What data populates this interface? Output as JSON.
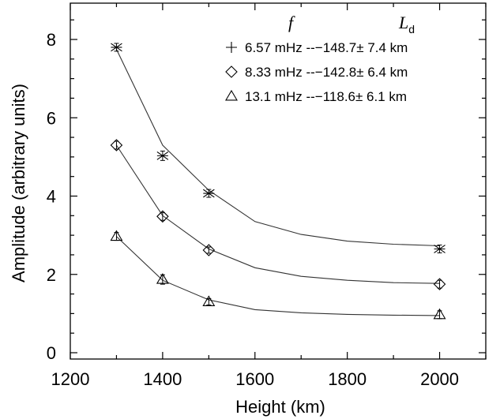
{
  "chart_data": {
    "type": "line",
    "title": "",
    "xlabel": "Height (km)",
    "ylabel": "Amplitude (arbitrary units)",
    "xlim": [
      1200,
      2100
    ],
    "ylim": [
      0,
      9
    ],
    "xticks": [
      1200,
      1400,
      1600,
      1800,
      2000
    ],
    "yticks": [
      0,
      2,
      4,
      6,
      8
    ],
    "legend": {
      "placement": "top-right",
      "header_symbol_1": "f",
      "header_symbol_2": "L",
      "header_symbol_2_subscript": "d"
    },
    "series": [
      {
        "name": "6.57 mHz",
        "legend_label": "6.57 mHz --−148.7± 7.4 km",
        "marker": "plus",
        "measured": {
          "x": [
            1300,
            1400,
            1500,
            2000
          ],
          "y": [
            7.8,
            5.03,
            4.07,
            2.65
          ],
          "err": [
            0.1,
            0.12,
            0.1,
            0.1
          ]
        },
        "fit": {
          "x": [
            1300,
            1400,
            1500,
            1600,
            1700,
            1800,
            1900,
            2000
          ],
          "y": [
            7.75,
            5.3,
            4.15,
            3.35,
            3.02,
            2.85,
            2.77,
            2.73
          ]
        }
      },
      {
        "name": "8.33 mHz",
        "legend_label": "8.33 mHz --−142.8± 6.4 km",
        "marker": "diamond",
        "measured": {
          "x": [
            1300,
            1400,
            1500,
            2000
          ],
          "y": [
            5.3,
            3.48,
            2.62,
            1.75
          ],
          "err": [
            0.1,
            0.1,
            0.08,
            0.1
          ]
        },
        "fit": {
          "x": [
            1300,
            1400,
            1500,
            1600,
            1700,
            1800,
            1900,
            2000
          ],
          "y": [
            5.3,
            3.5,
            2.65,
            2.17,
            1.95,
            1.85,
            1.79,
            1.77
          ]
        }
      },
      {
        "name": "13.1 mHz",
        "legend_label": "13.1 mHz --−118.6± 6.1 km",
        "marker": "triangle",
        "measured": {
          "x": [
            1300,
            1400,
            1500,
            2000
          ],
          "y": [
            2.97,
            1.87,
            1.3,
            0.97
          ],
          "err": [
            0.1,
            0.12,
            0.08,
            0.1
          ]
        },
        "fit": {
          "x": [
            1300,
            1400,
            1500,
            1600,
            1700,
            1800,
            1900,
            2000
          ],
          "y": [
            2.97,
            1.85,
            1.35,
            1.1,
            1.02,
            0.98,
            0.96,
            0.95
          ]
        }
      }
    ]
  }
}
